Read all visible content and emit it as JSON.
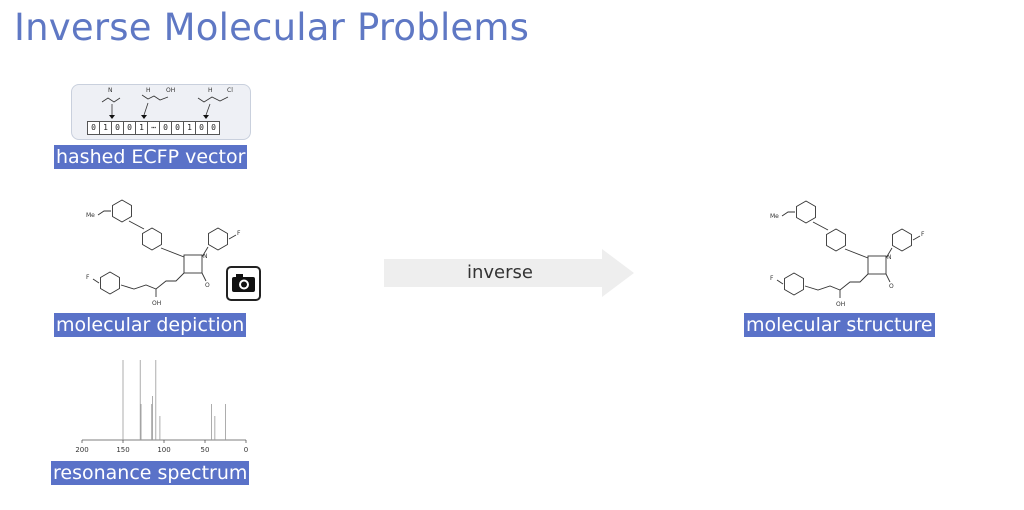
{
  "title": "Inverse Molecular Problems",
  "inputs": {
    "ecfp": {
      "label": "hashed ECFP vector",
      "bits": [
        "0",
        "1",
        "0",
        "0",
        "1",
        "⋯",
        "0",
        "0",
        "1",
        "0",
        "0"
      ],
      "fragment_labels": [
        "N",
        "H",
        "OH",
        "H",
        "Cl"
      ]
    },
    "depiction": {
      "label": "molecular depiction",
      "atom_labels": {
        "substituent": "Me",
        "fluoro": "F",
        "hydroxyl": "OH",
        "nitrogen": "N",
        "oxygen": "O"
      },
      "icon": "camera-icon"
    },
    "spectrum": {
      "label": "resonance spectrum",
      "ticks": [
        "200",
        "150",
        "100",
        "50",
        "0"
      ],
      "peaks_ppm": [
        150,
        129,
        128,
        115,
        114,
        110,
        105,
        42,
        38,
        25
      ],
      "peak_heights": [
        1.0,
        1.0,
        0.45,
        0.45,
        0.55,
        1.0,
        0.3,
        0.45,
        0.3,
        0.45
      ]
    }
  },
  "arrow": {
    "label": "inverse"
  },
  "output": {
    "label": "molecular structure"
  },
  "colors": {
    "title": "#5f78c4",
    "highlight": "#5a72c8",
    "arrow": "#eeeeee"
  }
}
